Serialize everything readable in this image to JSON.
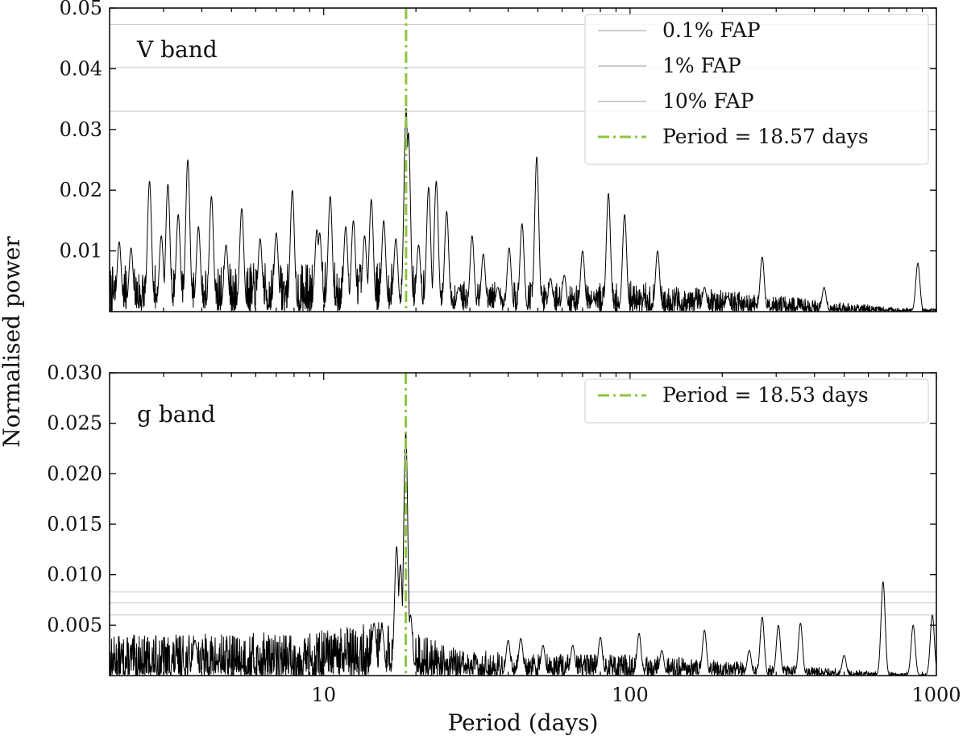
{
  "chart_data": [
    {
      "type": "line",
      "panel_label": "V band",
      "x_scale": "log",
      "xlim": [
        2,
        1000
      ],
      "ylim": [
        0,
        0.05
      ],
      "y_ticks": [
        "0.01",
        "0.02",
        "0.03",
        "0.04",
        "0.05"
      ],
      "fap_levels": [
        {
          "name": "0.1% FAP",
          "value": 0.0473
        },
        {
          "name": "1% FAP",
          "value": 0.0402
        },
        {
          "name": "10% FAP",
          "value": 0.033
        }
      ],
      "period": {
        "name": "Period = 18.57 days",
        "value": 18.57
      },
      "legend_position": "top-right",
      "colors": {
        "series": "#000000",
        "period": "#8cc63f",
        "fap": "#c8c8c8"
      },
      "noise_seed": 7,
      "noise_level": [
        [
          2,
          0.0042
        ],
        [
          9,
          0.0045
        ],
        [
          18,
          0.0048
        ],
        [
          25,
          0.0028
        ]
      ],
      "peaks": [
        [
          2.15,
          0.0115
        ],
        [
          2.35,
          0.0105
        ],
        [
          2.7,
          0.0215
        ],
        [
          2.95,
          0.0125
        ],
        [
          3.1,
          0.021
        ],
        [
          3.35,
          0.016
        ],
        [
          3.6,
          0.025
        ],
        [
          3.9,
          0.014
        ],
        [
          4.3,
          0.019
        ],
        [
          4.8,
          0.011
        ],
        [
          5.4,
          0.017
        ],
        [
          6.2,
          0.012
        ],
        [
          7.0,
          0.013
        ],
        [
          7.9,
          0.02
        ],
        [
          9.5,
          0.0135
        ],
        [
          9.7,
          0.013
        ],
        [
          10.5,
          0.019
        ],
        [
          11.8,
          0.014
        ],
        [
          12.5,
          0.015
        ],
        [
          13.6,
          0.0125
        ],
        [
          14.3,
          0.0185
        ],
        [
          15.7,
          0.015
        ],
        [
          17.2,
          0.012
        ],
        [
          18.57,
          0.0335
        ],
        [
          18.9,
          0.0295
        ],
        [
          20.4,
          0.011
        ],
        [
          22.0,
          0.0205
        ],
        [
          23.3,
          0.0215
        ],
        [
          25.2,
          0.0165
        ],
        [
          27.6,
          0.004
        ],
        [
          30.5,
          0.0125
        ],
        [
          33.2,
          0.0095
        ],
        [
          37.0,
          0.004
        ],
        [
          40.3,
          0.0105
        ],
        [
          44.4,
          0.0145
        ],
        [
          49.6,
          0.0255
        ],
        [
          55.0,
          0.0055
        ],
        [
          61.0,
          0.006
        ],
        [
          70.0,
          0.01
        ],
        [
          76.0,
          0.002
        ],
        [
          85.0,
          0.0195
        ],
        [
          96.0,
          0.016
        ],
        [
          123.0,
          0.01
        ],
        [
          175.0,
          0.004
        ],
        [
          208.0,
          0.0025
        ],
        [
          270.0,
          0.009
        ],
        [
          430.0,
          0.004
        ],
        [
          870.0,
          0.008
        ]
      ]
    },
    {
      "type": "line",
      "panel_label": "g band",
      "x_scale": "log",
      "xlim": [
        2,
        1000
      ],
      "ylim": [
        0,
        0.03
      ],
      "y_ticks": [
        "0.005",
        "0.010",
        "0.015",
        "0.020",
        "0.025",
        "0.030"
      ],
      "fap_levels": [
        {
          "name": "0.1% FAP",
          "value": 0.0083
        },
        {
          "name": "1% FAP",
          "value": 0.0072
        },
        {
          "name": "10% FAP",
          "value": 0.006
        }
      ],
      "period": {
        "name": "Period = 18.53 days",
        "value": 18.53
      },
      "legend_position": "top-right",
      "colors": {
        "series": "#000000",
        "period": "#8cc63f",
        "fap": "#c8c8c8"
      },
      "noise_seed": 13,
      "noise_level": [
        [
          2,
          0.0022
        ],
        [
          9,
          0.0024
        ],
        [
          16,
          0.003
        ],
        [
          28,
          0.0014
        ],
        [
          60,
          0.0012
        ]
      ],
      "peaks": [
        [
          3.8,
          0.0035
        ],
        [
          14.6,
          0.0052
        ],
        [
          15.5,
          0.0048
        ],
        [
          17.3,
          0.0128
        ],
        [
          17.8,
          0.011
        ],
        [
          18.53,
          0.024
        ],
        [
          19.2,
          0.006
        ],
        [
          40.0,
          0.0035
        ],
        [
          44.0,
          0.0037
        ],
        [
          52.0,
          0.003
        ],
        [
          65.0,
          0.003
        ],
        [
          80.0,
          0.0038
        ],
        [
          107.0,
          0.0042
        ],
        [
          127.0,
          0.0025
        ],
        [
          175.0,
          0.0045
        ],
        [
          245.0,
          0.0025
        ],
        [
          270.0,
          0.0058
        ],
        [
          305.0,
          0.005
        ],
        [
          360.0,
          0.0052
        ],
        [
          500.0,
          0.002
        ],
        [
          670.0,
          0.0093
        ],
        [
          840.0,
          0.005
        ],
        [
          970.0,
          0.006
        ]
      ]
    }
  ],
  "x_ticks": [
    "10",
    "100",
    "1000"
  ],
  "x_label": "Period (days)",
  "y_label": "Normalised power"
}
